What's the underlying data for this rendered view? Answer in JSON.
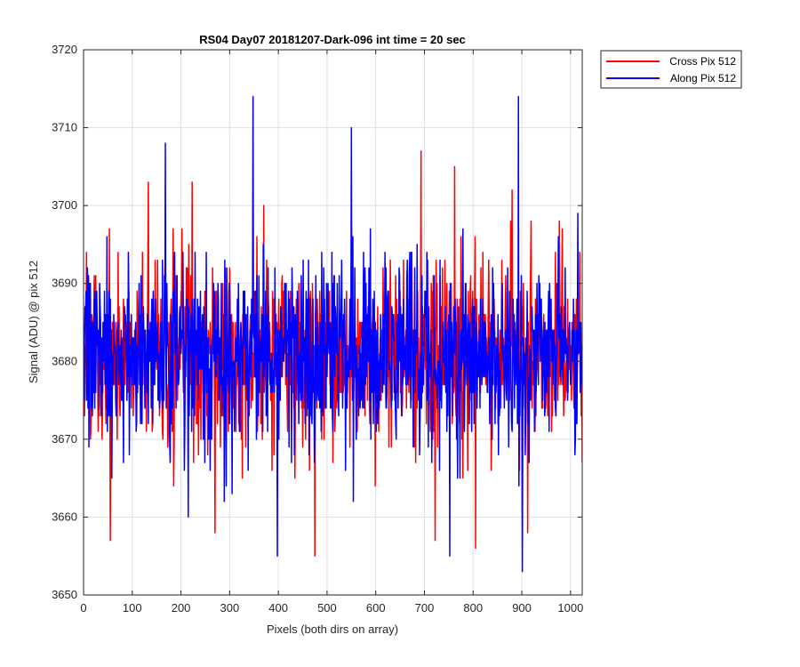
{
  "chart_data": {
    "type": "line",
    "title": "RS04 Day07 20181207-Dark-096 int time = 20 sec",
    "xlabel": "Pixels (both dirs on array)",
    "ylabel": "Signal (ADU) @ pix 512",
    "xlim": [
      0,
      1024
    ],
    "ylim": [
      3650,
      3720
    ],
    "xticks": [
      "0",
      "100",
      "200",
      "300",
      "400",
      "500",
      "600",
      "700",
      "800",
      "900",
      "1000"
    ],
    "yticks": [
      "3650",
      "3660",
      "3670",
      "3680",
      "3690",
      "3700",
      "3710",
      "3720"
    ],
    "grid": true,
    "legend_position": "outside-top-right",
    "sampling": "one value per pixel, x = 1..1024; between the listed anchor points the values fluctuate randomly with the stated mean and noise",
    "series": [
      {
        "name": "Cross Pix 512",
        "color": "#ff0000",
        "mean": 3681,
        "noise_sd": 6,
        "min": 3655,
        "max": 3707,
        "anchor_points": [
          {
            "x": 55,
            "y": 3657
          },
          {
            "x": 133,
            "y": 3703
          },
          {
            "x": 223,
            "y": 3703
          },
          {
            "x": 270,
            "y": 3658
          },
          {
            "x": 475,
            "y": 3655
          },
          {
            "x": 693,
            "y": 3707
          },
          {
            "x": 722,
            "y": 3657
          },
          {
            "x": 762,
            "y": 3705
          },
          {
            "x": 805,
            "y": 3656
          },
          {
            "x": 880,
            "y": 3702
          },
          {
            "x": 912,
            "y": 3658
          }
        ]
      },
      {
        "name": "Along Pix 512",
        "color": "#0000ff",
        "mean": 3681,
        "noise_sd": 6,
        "min": 3653,
        "max": 3714,
        "anchor_points": [
          {
            "x": 168,
            "y": 3708
          },
          {
            "x": 215,
            "y": 3660
          },
          {
            "x": 348,
            "y": 3714
          },
          {
            "x": 398,
            "y": 3655
          },
          {
            "x": 550,
            "y": 3710
          },
          {
            "x": 752,
            "y": 3655
          },
          {
            "x": 893,
            "y": 3714
          },
          {
            "x": 901,
            "y": 3653
          },
          {
            "x": 1015,
            "y": 3699
          }
        ]
      }
    ]
  }
}
